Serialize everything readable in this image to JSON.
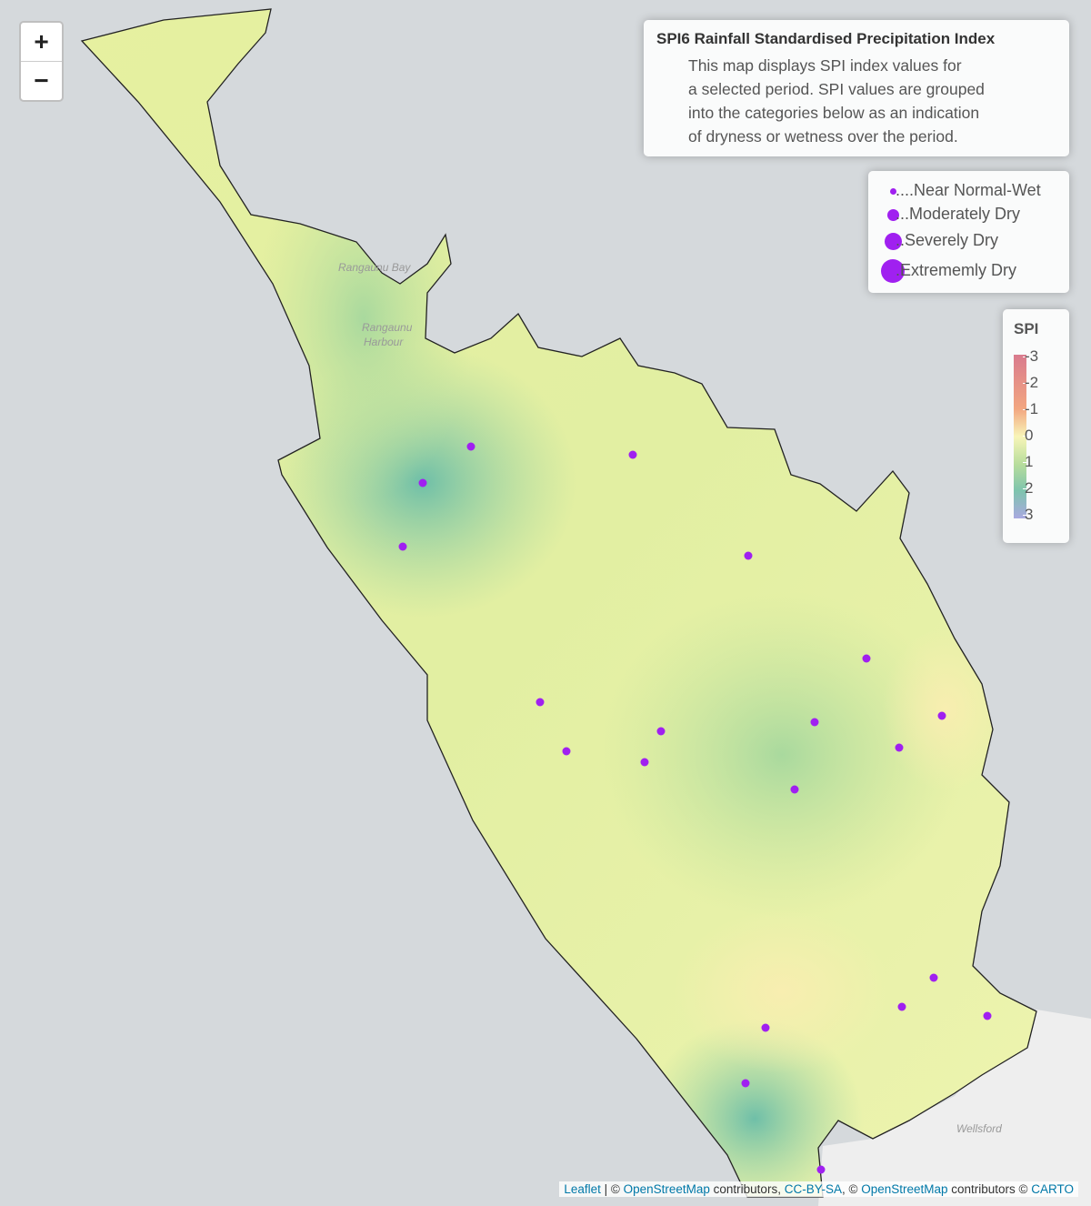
{
  "zoom": {
    "in": "+",
    "out": "−"
  },
  "info": {
    "title": "SPI6 Rainfall Standardised Precipitation Index",
    "lines": [
      "This map displays SPI index values for",
      "a selected period. SPI values are grouped",
      "into the categories below as an indication",
      "of dryness or wetness over the period."
    ]
  },
  "legend": [
    "....Near Normal-Wet",
    "...Moderately Dry",
    "..Severely Dry",
    ".Extrememly Dry"
  ],
  "colorbar": {
    "title": "SPI",
    "ticks": [
      -3,
      -2,
      -1,
      0,
      1,
      2,
      3
    ]
  },
  "places": {
    "bay": "Rangaunu Bay",
    "harbour1": "Rangaunu",
    "harbour2": "Harbour",
    "town": "Wellsford"
  },
  "attribution": {
    "leaflet": "Leaflet",
    "t1": " | © ",
    "osm1": "OpenStreetMap",
    "t2": " contributors, ",
    "cc": "CC-BY-SA",
    "t3": ", © ",
    "osm2": "OpenStreetMap",
    "t4": " contributors © ",
    "carto": "CARTO"
  }
}
